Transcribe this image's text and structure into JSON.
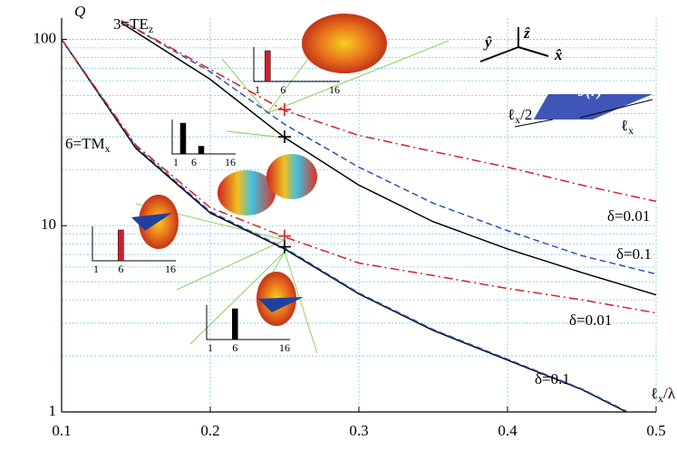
{
  "chart_data": {
    "type": "line",
    "x_label": {
      "text": "ℓ",
      "sub": "x",
      "tail": "/λ"
    },
    "y_label": "Q",
    "xlim": [
      0.1,
      0.5
    ],
    "ylim": [
      1,
      130
    ],
    "xticks": [
      0.1,
      0.2,
      0.3,
      0.4,
      0.5
    ],
    "yticks": [
      1,
      10,
      100
    ],
    "log_y": true,
    "grid": true,
    "series": [
      {
        "color": "#000000",
        "dash": "solid",
        "x": [
          0.1,
          0.15,
          0.2,
          0.25,
          0.3,
          0.35,
          0.4,
          0.45,
          0.48
        ],
        "values": [
          100,
          26,
          11.7,
          7.5,
          4.3,
          2.74,
          1.9,
          1.32,
          1
        ]
      },
      {
        "color": "#2a55b5",
        "dash": "dashed",
        "x": [
          0.1,
          0.15,
          0.2,
          0.25,
          0.3,
          0.35,
          0.4,
          0.45,
          0.48
        ],
        "values": [
          100,
          26.5,
          11.9,
          7.6,
          4.35,
          2.77,
          1.92,
          1.33,
          1.01
        ]
      },
      {
        "color": "#d0202a",
        "dash": "dashdot",
        "x": [
          0.1,
          0.15,
          0.2,
          0.25,
          0.3,
          0.35,
          0.4,
          0.45,
          0.5
        ],
        "values": [
          100,
          27,
          12.5,
          8.7,
          6.3,
          5.4,
          4.6,
          4.0,
          3.4
        ]
      },
      {
        "color": "#000000",
        "dash": "solid",
        "x": [
          0.14,
          0.2,
          0.25,
          0.3,
          0.35,
          0.4,
          0.45,
          0.5
        ],
        "values": [
          123,
          61,
          29.7,
          16.5,
          10.5,
          7.5,
          5.6,
          4.25
        ]
      },
      {
        "color": "#2a55b5",
        "dash": "dashed",
        "x": [
          0.14,
          0.2,
          0.25,
          0.3,
          0.35,
          0.4,
          0.45,
          0.5
        ],
        "values": [
          126,
          67,
          35,
          20.6,
          13.2,
          9.4,
          6.9,
          5.5
        ]
      },
      {
        "color": "#d0202a",
        "dash": "dashdot",
        "x": [
          0.14,
          0.2,
          0.25,
          0.3,
          0.35,
          0.4,
          0.45,
          0.5
        ],
        "values": [
          126,
          69,
          41.5,
          30.5,
          25,
          20.6,
          16.5,
          13.5
        ]
      }
    ],
    "markers": [
      {
        "x": 0.25,
        "y": 42,
        "color": "#d0202a"
      },
      {
        "x": 0.25,
        "y": 30,
        "color": "#000000"
      },
      {
        "x": 0.25,
        "y": 8.8,
        "color": "#d0202a"
      },
      {
        "x": 0.25,
        "y": 7.7,
        "color": "#000000"
      }
    ],
    "annotations": [
      {
        "text": "3=TE",
        "sub": "z"
      },
      {
        "text": "6=TM",
        "sub": "x"
      },
      {
        "text": "δ=0.01"
      },
      {
        "text": "δ=0.1"
      },
      {
        "text": "δ=0.01"
      },
      {
        "text": "δ=0.1"
      }
    ],
    "insets": [
      {
        "xticks": [
          1,
          6,
          16
        ],
        "bars": [
          {
            "mode": 3,
            "height": 1,
            "color": "#d0202a"
          }
        ]
      },
      {
        "xticks": [
          1,
          6,
          16
        ],
        "bars": [
          {
            "mode": 3,
            "height": 1,
            "color": "#000000"
          },
          {
            "mode": 8,
            "height": 0.25,
            "color": "#000000"
          }
        ]
      },
      {
        "xticks": [
          1,
          6,
          16
        ],
        "bars": [
          {
            "mode": 6,
            "height": 1,
            "color": "#d0202a"
          }
        ]
      },
      {
        "xticks": [
          1,
          6,
          16
        ],
        "bars": [
          {
            "mode": 6,
            "height": 1,
            "color": "#000000"
          }
        ]
      }
    ],
    "schematic": {
      "axis_y": "ŷ",
      "axis_z": "ẑ",
      "axis_x": "x̂",
      "current": "J(r)",
      "width": {
        "text": "ℓ",
        "sub": "x",
        "tail": "/2"
      },
      "length": {
        "text": "ℓ",
        "sub": "x"
      }
    }
  }
}
